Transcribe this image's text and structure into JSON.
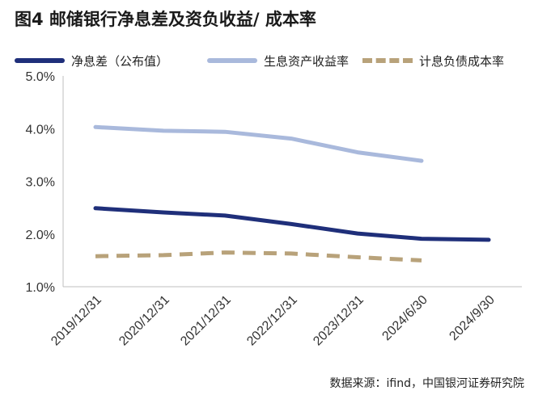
{
  "chart_data": {
    "type": "line",
    "title": "图4  邮储银行净息差及资负收益/ 成本率",
    "categories": [
      "2019/12/31",
      "2020/12/31",
      "2021/12/31",
      "2022/12/31",
      "2023/12/31",
      "2024/6/30",
      "2024/9/30"
    ],
    "yticks": [
      "1.0%",
      "2.0%",
      "3.0%",
      "4.0%",
      "5.0%"
    ],
    "ylim": [
      1.0,
      5.0
    ],
    "grid": false,
    "legend_position": "top",
    "series": [
      {
        "name": "净息差（公布值）",
        "color": "#1f2f7a",
        "style": "solid",
        "values": [
          2.49,
          2.41,
          2.35,
          2.19,
          2.01,
          1.91,
          1.89
        ]
      },
      {
        "name": "生息资产收益率",
        "color": "#a9b9dc",
        "style": "solid",
        "values": [
          4.03,
          3.96,
          3.94,
          3.81,
          3.55,
          3.39,
          null
        ]
      },
      {
        "name": "计息负债成本率",
        "color": "#b8a27a",
        "style": "dashed",
        "values": [
          1.58,
          1.6,
          1.65,
          1.63,
          1.56,
          1.5,
          null
        ]
      }
    ],
    "source_note": "数据来源：ifind，中国银河证券研究院"
  }
}
